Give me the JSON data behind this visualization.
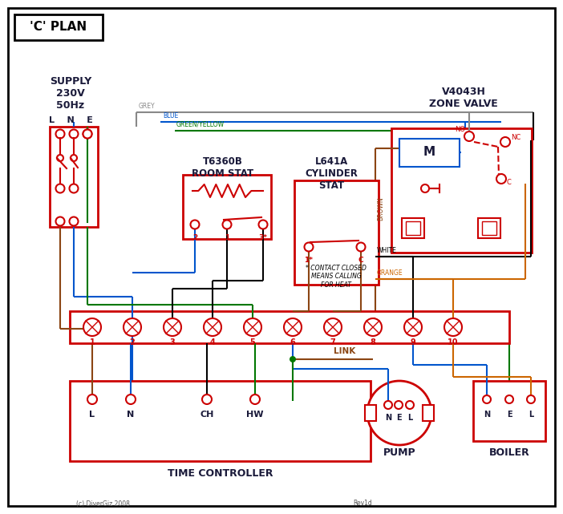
{
  "title": "'C' PLAN",
  "bg_color": "#ffffff",
  "border_color": "#000000",
  "red": "#cc0000",
  "blue": "#0055cc",
  "green": "#007700",
  "brown": "#8B4513",
  "grey": "#888888",
  "orange": "#cc6600",
  "black": "#000000",
  "dark_text": "#1a1a3a",
  "supply_text": "SUPPLY\n230V\n50Hz",
  "zone_valve_label": "V4043H\nZONE VALVE",
  "room_stat_label": "T6360B\nROOM STAT",
  "cyl_stat_label": "L641A\nCYLINDER\nSTAT",
  "time_ctrl_label": "TIME CONTROLLER",
  "pump_label": "PUMP",
  "boiler_label": "BOILER",
  "link_label": "LINK",
  "contact_note": "* CONTACT CLOSED\nMEANS CALLING\nFOR HEAT",
  "copyright": "(c) DiverGiz 2008",
  "rev": "Rev1d"
}
